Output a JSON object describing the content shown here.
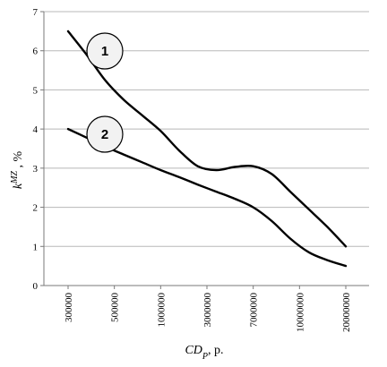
{
  "chart_data": {
    "type": "line",
    "xlabel": "CD_P, p.",
    "xlabel_main": "CD",
    "xlabel_sub": "P",
    "xlabel_suffix": ", p.",
    "ylabel_main": "k",
    "ylabel_sup": "MZ",
    "ylabel_suffix": " , %",
    "ylim": [
      0,
      7
    ],
    "yticks": [
      "0",
      "1",
      "2",
      "3",
      "4",
      "5",
      "6",
      "7"
    ],
    "categories": [
      "300000",
      "500000",
      "1000000",
      "3000000",
      "7000000",
      "10000000",
      "20000000"
    ],
    "grid": true,
    "series": [
      {
        "name": "1",
        "x": [
          0,
          0.4,
          0.8,
          1.2,
          1.6,
          2.0,
          2.4,
          2.8,
          3.2,
          3.6,
          4.0,
          4.4,
          4.8,
          5.2,
          5.6,
          6.0
        ],
        "values": [
          6.5,
          5.9,
          5.25,
          4.75,
          4.35,
          3.95,
          3.45,
          3.05,
          2.95,
          3.03,
          3.05,
          2.85,
          2.4,
          1.95,
          1.5,
          1.0
        ]
      },
      {
        "name": "2",
        "x": [
          0,
          0.4,
          0.8,
          1.2,
          1.6,
          2.0,
          2.4,
          2.8,
          3.2,
          3.6,
          4.0,
          4.4,
          4.8,
          5.2,
          5.6,
          6.0
        ],
        "values": [
          4.0,
          3.78,
          3.55,
          3.35,
          3.15,
          2.95,
          2.77,
          2.58,
          2.4,
          2.22,
          2.0,
          1.65,
          1.2,
          0.85,
          0.65,
          0.5
        ]
      }
    ]
  }
}
